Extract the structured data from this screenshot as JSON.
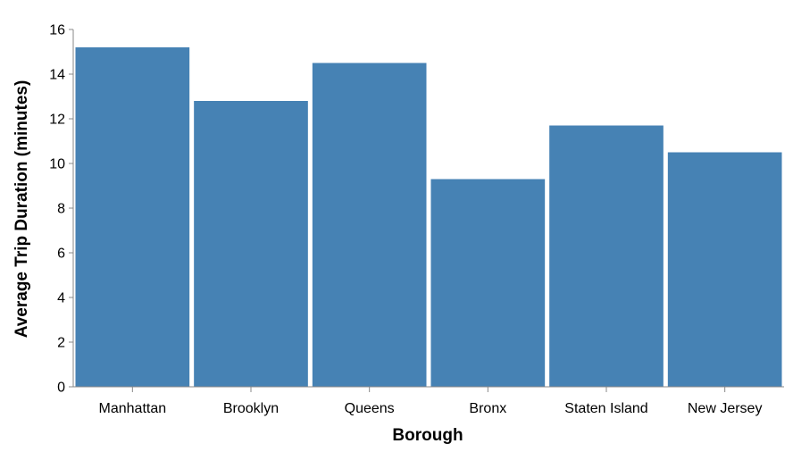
{
  "chart_data": {
    "type": "bar",
    "title": "",
    "xlabel": "Borough",
    "ylabel": "Average Trip Duration (minutes)",
    "categories": [
      "Manhattan",
      "Brooklyn",
      "Queens",
      "Bronx",
      "Staten Island",
      "New Jersey"
    ],
    "values": [
      15.2,
      12.8,
      14.5,
      9.3,
      11.7,
      10.5
    ],
    "ylim": [
      0,
      16
    ],
    "yticks": [
      0,
      2,
      4,
      6,
      8,
      10,
      12,
      14,
      16
    ],
    "grid": false,
    "legend": "none",
    "bar_color": "#4682b4"
  }
}
